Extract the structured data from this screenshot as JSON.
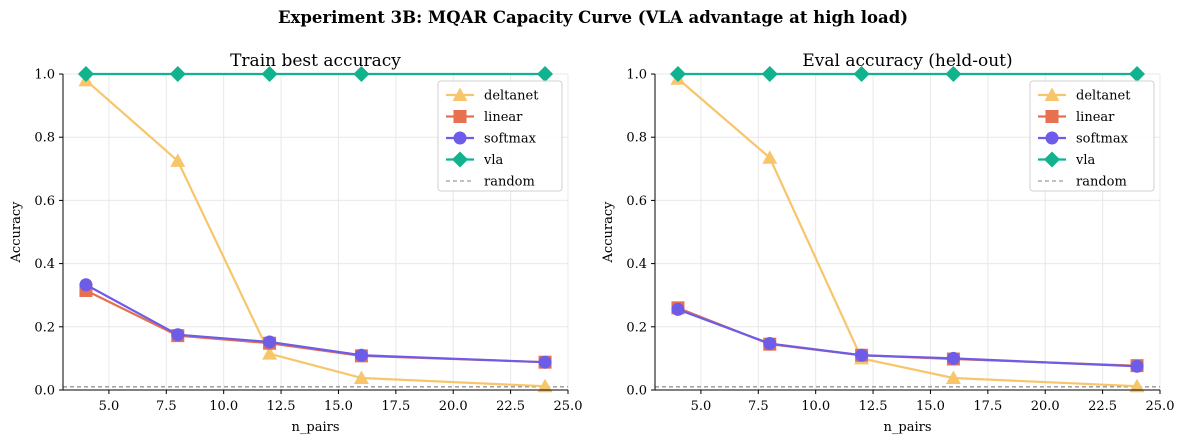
{
  "suptitle": "Experiment 3B: MQAR Capacity Curve  (VLA advantage at high load)",
  "colors": {
    "deltanet": "#f7c66b",
    "linear": "#e6704f",
    "softmax": "#6c5ce7",
    "vla": "#11b38e",
    "random": "#808080",
    "grid": "#e8e8e8"
  },
  "chart_data": [
    {
      "type": "line",
      "title": "Train best accuracy",
      "xlabel": "n_pairs",
      "ylabel": "Accuracy",
      "xlim": [
        3,
        25
      ],
      "ylim": [
        0,
        1.0
      ],
      "xticks": [
        5.0,
        7.5,
        10.0,
        12.5,
        15.0,
        17.5,
        20.0,
        22.5,
        25.0
      ],
      "xtick_labels": [
        "5.0",
        "7.5",
        "10.0",
        "12.5",
        "15.0",
        "17.5",
        "20.0",
        "22.5",
        "25.0"
      ],
      "yticks": [
        0.0,
        0.2,
        0.4,
        0.6,
        0.8,
        1.0
      ],
      "ytick_labels": [
        "0.0",
        "0.2",
        "0.4",
        "0.6",
        "0.8",
        "1.0"
      ],
      "grid": true,
      "legend_position": "top-right",
      "x": [
        4,
        8,
        12,
        16,
        24
      ],
      "series": [
        {
          "name": "deltanet",
          "marker": "triangle",
          "values": [
            0.98,
            0.725,
            0.115,
            0.038,
            0.012
          ]
        },
        {
          "name": "linear",
          "marker": "square",
          "values": [
            0.315,
            0.172,
            0.148,
            0.108,
            0.088
          ]
        },
        {
          "name": "softmax",
          "marker": "circle",
          "values": [
            0.333,
            0.175,
            0.152,
            0.11,
            0.088
          ]
        },
        {
          "name": "vla",
          "marker": "diamond",
          "values": [
            1.0,
            1.0,
            1.0,
            1.0,
            1.0
          ]
        }
      ],
      "reference_lines": [
        {
          "name": "random",
          "y": 0.01,
          "style": "dashed"
        }
      ]
    },
    {
      "type": "line",
      "title": "Eval accuracy (held-out)",
      "xlabel": "n_pairs",
      "ylabel": "Accuracy",
      "xlim": [
        3,
        25
      ],
      "ylim": [
        0,
        1.0
      ],
      "xticks": [
        5.0,
        7.5,
        10.0,
        12.5,
        15.0,
        17.5,
        20.0,
        22.5,
        25.0
      ],
      "xtick_labels": [
        "5.0",
        "7.5",
        "10.0",
        "12.5",
        "15.0",
        "17.5",
        "20.0",
        "22.5",
        "25.0"
      ],
      "yticks": [
        0.0,
        0.2,
        0.4,
        0.6,
        0.8,
        1.0
      ],
      "ytick_labels": [
        "0.0",
        "0.2",
        "0.4",
        "0.6",
        "0.8",
        "1.0"
      ],
      "grid": true,
      "legend_position": "top-right",
      "x": [
        4,
        8,
        12,
        16,
        24
      ],
      "series": [
        {
          "name": "deltanet",
          "marker": "triangle",
          "values": [
            0.985,
            0.735,
            0.1,
            0.038,
            0.012
          ]
        },
        {
          "name": "linear",
          "marker": "square",
          "values": [
            0.26,
            0.145,
            0.11,
            0.098,
            0.077
          ]
        },
        {
          "name": "softmax",
          "marker": "circle",
          "values": [
            0.255,
            0.147,
            0.11,
            0.1,
            0.075
          ]
        },
        {
          "name": "vla",
          "marker": "diamond",
          "values": [
            1.0,
            1.0,
            1.0,
            1.0,
            1.0
          ]
        }
      ],
      "reference_lines": [
        {
          "name": "random",
          "y": 0.01,
          "style": "dashed"
        }
      ]
    }
  ]
}
